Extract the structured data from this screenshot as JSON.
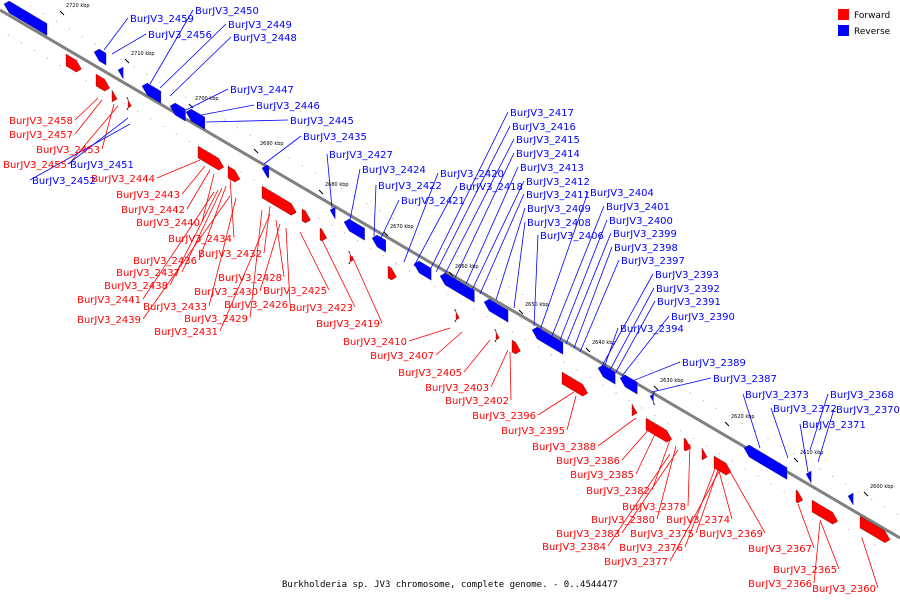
{
  "caption": "Burkholderia sp. JV3 chromosome, complete genome. - 0..4544477",
  "legend": [
    {
      "label": "Forward",
      "color": "#ff0000"
    },
    {
      "label": "Reverse",
      "color": "#0000ff"
    }
  ],
  "ticks": [
    "2720 kbp",
    "2710 kbp",
    "2700 kbp",
    "2690 kbp",
    "2680 kbp",
    "2670 kbp",
    "2660 kbp",
    "2650 kbp",
    "2640 kbp",
    "2630 kbp",
    "2620 kbp",
    "2610 kbp",
    "2600 kbp"
  ],
  "forward_labels": [
    "BurJV3_2458",
    "BurJV3_2457",
    "BurJV3_2453",
    "BurJV3_2455",
    "BurJV3_2444",
    "BurJV3_2443",
    "BurJV3_2442",
    "BurJV3_2440",
    "BurJV3_2434",
    "BurJV3_2436",
    "BurJV3_2437",
    "BurJV3_2438",
    "BurJV3_2441",
    "BurJV3_2439",
    "BurJV3_2433",
    "BurJV3_2429",
    "BurJV3_2431",
    "BurJV3_2432",
    "BurJV3_2428",
    "BurJV3_2430",
    "BurJV3_2426",
    "BurJV3_2425",
    "BurJV3_2423",
    "BurJV3_2419",
    "BurJV3_2410",
    "BurJV3_2407",
    "BurJV3_2405",
    "BurJV3_2403",
    "BurJV3_2402",
    "BurJV3_2396",
    "BurJV3_2395",
    "BurJV3_2388",
    "BurJV3_2386",
    "BurJV3_2385",
    "BurJV3_2382",
    "BurJV3_2378",
    "BurJV3_2380",
    "BurJV3_2374",
    "BurJV3_2383",
    "BurJV3_2375",
    "BurJV3_2369",
    "BurJV3_2384",
    "BurJV3_2376",
    "BurJV3_2377",
    "BurJV3_2367",
    "BurJV3_2365",
    "BurJV3_2366",
    "BurJV3_2360"
  ],
  "reverse_labels": [
    "BurJV3_2459",
    "BurJV3_2456",
    "BurJV3_2450",
    "BurJV3_2449",
    "BurJV3_2448",
    "BurJV3_2447",
    "BurJV3_2446",
    "BurJV3_2445",
    "BurJV3_2435",
    "BurJV3_2451",
    "BurJV3_2452",
    "BurJV3_2427",
    "BurJV3_2424",
    "BurJV3_2422",
    "BurJV3_2421",
    "BurJV3_2420",
    "BurJV3_2418",
    "BurJV3_2417",
    "BurJV3_2416",
    "BurJV3_2415",
    "BurJV3_2414",
    "BurJV3_2413",
    "BurJV3_2412",
    "BurJV3_2411",
    "BurJV3_2409",
    "BurJV3_2408",
    "BurJV3_2406",
    "BurJV3_2404",
    "BurJV3_2401",
    "BurJV3_2400",
    "BurJV3_2399",
    "BurJV3_2398",
    "BurJV3_2397",
    "BurJV3_2393",
    "BurJV3_2392",
    "BurJV3_2391",
    "BurJV3_2390",
    "BurJV3_2394",
    "BurJV3_2389",
    "BurJV3_2387",
    "BurJV3_2373",
    "BurJV3_2372",
    "BurJV3_2371",
    "BurJV3_2368",
    "BurJV3_2370"
  ]
}
